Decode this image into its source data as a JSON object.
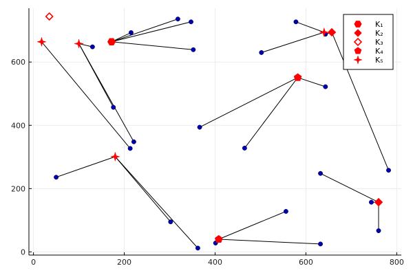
{
  "chart_data": {
    "type": "scatter",
    "title": "",
    "xlabel": "",
    "ylabel": "",
    "xlim": [
      -10,
      810
    ],
    "ylim": [
      -10,
      770
    ],
    "xticks": [
      0,
      200,
      400,
      600,
      800
    ],
    "yticks": [
      0,
      200,
      400,
      600
    ],
    "grid": true,
    "legend_position": "top-right",
    "colors": {
      "hub": "#ff0000",
      "node": "#0000aa",
      "edge": "#000000",
      "grid": "#ececec"
    },
    "series": [
      {
        "name": "K₁",
        "marker": "hexagon",
        "hubs": [
          {
            "x": 172,
            "y": 664,
            "links": [
              [
                215,
                693
              ],
              [
                318,
                736
              ],
              [
                352,
                639
              ],
              [
                347,
                727
              ]
            ]
          }
        ]
      },
      {
        "name": "K₂",
        "marker": "diamond",
        "hubs": [
          {
            "x": 657,
            "y": 694,
            "links": [
              [
                643,
                688
              ],
              [
                782,
                258
              ]
            ]
          },
          {
            "x": 760,
            "y": 157,
            "links": [
              [
                744,
                157
              ],
              [
                632,
                248
              ],
              [
                760,
                67
              ]
            ]
          }
        ]
      },
      {
        "name": "K₃",
        "marker": "diamond-open",
        "hubs": [
          {
            "x": 35,
            "y": 744,
            "links": []
          }
        ]
      },
      {
        "name": "K₄",
        "marker": "pentagon",
        "hubs": [
          {
            "x": 582,
            "y": 551,
            "links": [
              [
                643,
                522
              ],
              [
                465,
                328
              ],
              [
                366,
                394
              ]
            ]
          },
          {
            "x": 408,
            "y": 40,
            "links": [
              [
                401,
                28
              ],
              [
                556,
                128
              ],
              [
                632,
                25
              ]
            ]
          }
        ]
      },
      {
        "name": "K₅",
        "marker": "star",
        "hubs": [
          {
            "x": 18,
            "y": 664,
            "links": [
              [
                213,
                327
              ]
            ]
          },
          {
            "x": 100,
            "y": 658,
            "links": [
              [
                130,
                648
              ],
              [
                221,
                348
              ],
              [
                176,
                457
              ]
            ]
          },
          {
            "x": 180,
            "y": 301,
            "links": [
              [
                50,
                236
              ],
              [
                302,
                95
              ],
              [
                362,
                12
              ]
            ]
          },
          {
            "x": 640,
            "y": 694,
            "links": [
              [
                578,
                727
              ],
              [
                502,
                630
              ]
            ]
          }
        ]
      }
    ]
  }
}
